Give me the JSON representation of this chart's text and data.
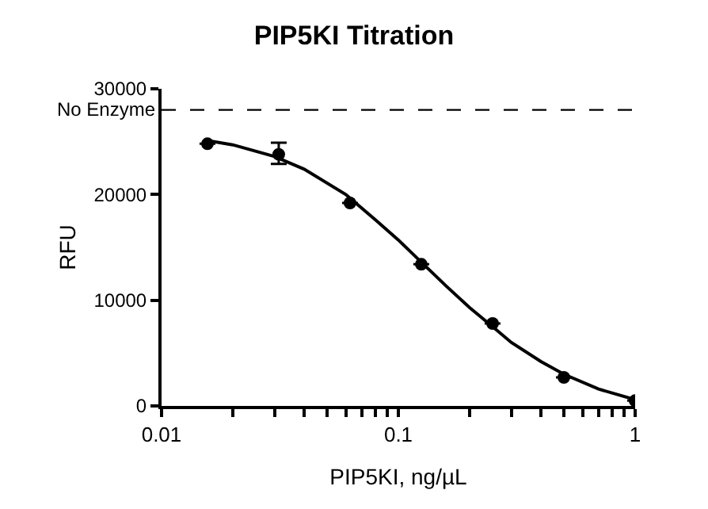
{
  "chart_data": {
    "type": "scatter",
    "title": "PIP5KI Titration",
    "xlabel": "PIP5KI, ng/µL",
    "ylabel": "RFU",
    "log": "x",
    "marker": "circle",
    "xlim": [
      0.01,
      1
    ],
    "xticks": [
      {
        "value": 0.01,
        "label": "0.01"
      },
      {
        "value": 0.02,
        "label": null
      },
      {
        "value": 0.03,
        "label": null
      },
      {
        "value": 0.04,
        "label": null
      },
      {
        "value": 0.05,
        "label": null
      },
      {
        "value": 0.06,
        "label": null
      },
      {
        "value": 0.07,
        "label": null
      },
      {
        "value": 0.08,
        "label": null
      },
      {
        "value": 0.09,
        "label": null
      },
      {
        "value": 0.1,
        "label": "0.1"
      },
      {
        "value": 0.2,
        "label": null
      },
      {
        "value": 0.3,
        "label": null
      },
      {
        "value": 0.4,
        "label": null
      },
      {
        "value": 0.5,
        "label": null
      },
      {
        "value": 0.6,
        "label": null
      },
      {
        "value": 0.7,
        "label": null
      },
      {
        "value": 0.8,
        "label": null
      },
      {
        "value": 0.9,
        "label": null
      },
      {
        "value": 1,
        "label": "1"
      }
    ],
    "ylim": [
      0,
      30000
    ],
    "yticks": [
      0,
      10000,
      20000,
      30000
    ],
    "ref_lines": [
      {
        "axis": "y",
        "value": 28000,
        "label": "No Enzyme",
        "color": "#000000",
        "line_style": "dashed"
      }
    ],
    "series": [
      {
        "color": "#000000",
        "x": [
          0.015625,
          0.03125,
          0.0625,
          0.125,
          0.25,
          0.5,
          1
        ],
        "values": [
          24800,
          23800,
          19200,
          13400,
          7800,
          2700,
          500
        ],
        "errors": [
          null,
          [
            22900,
            24900
          ],
          null,
          null,
          null,
          null,
          null
        ]
      },
      {
        "type": "line",
        "color": "#000000",
        "marker": "none",
        "line_style": "solid",
        "x": [
          0.0156,
          0.02,
          0.03,
          0.04,
          0.06,
          0.08,
          0.1,
          0.125,
          0.16,
          0.2,
          0.25,
          0.3,
          0.4,
          0.5,
          0.7,
          1
        ],
        "values": [
          25100,
          24700,
          23600,
          22400,
          20000,
          17600,
          15700,
          13600,
          11300,
          9300,
          7500,
          6000,
          4200,
          3000,
          1600,
          600
        ]
      }
    ]
  }
}
